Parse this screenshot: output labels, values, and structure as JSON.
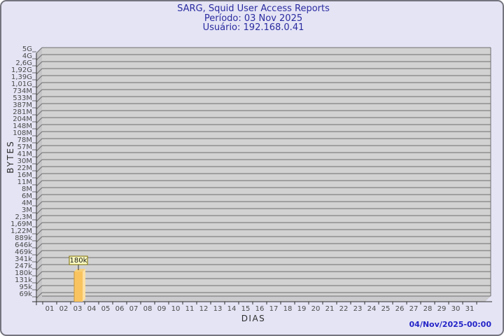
{
  "chart_data": {
    "type": "bar",
    "title": "SARG, Squid User Access Reports",
    "subtitle_period": "Período: 03 Nov 2025",
    "subtitle_user": "Usuário: 192.168.0.41",
    "xlabel": "DIAS",
    "ylabel": "BYTES",
    "grid": true,
    "x_categories": [
      "01",
      "02",
      "03",
      "04",
      "05",
      "06",
      "07",
      "08",
      "09",
      "10",
      "11",
      "12",
      "13",
      "14",
      "15",
      "16",
      "17",
      "18",
      "19",
      "20",
      "21",
      "22",
      "23",
      "24",
      "25",
      "26",
      "27",
      "28",
      "29",
      "30",
      "31"
    ],
    "y_tick_labels": [
      "5G",
      "4G",
      "2,6G",
      "1,92G",
      "1,39G",
      "1,01G",
      "734M",
      "533M",
      "387M",
      "281M",
      "204M",
      "148M",
      "108M",
      "78M",
      "57M",
      "41M",
      "30M",
      "22M",
      "16M",
      "11M",
      "8M",
      "6M",
      "4M",
      "3M",
      "2,3M",
      "1,69M",
      "1,22M",
      "889k",
      "646k",
      "469k",
      "341k",
      "247k",
      "180k",
      "131k",
      "95k",
      "69k"
    ],
    "y_scale": {
      "type": "log",
      "bottom_tick_value": 69000,
      "top_tick_value": 5000000000
    },
    "bars": [
      {
        "day": "03",
        "value_bytes": 180000,
        "value_label": "180k"
      }
    ]
  },
  "footer": {
    "generated_timestamp": "04/Nov/2025-00:00"
  },
  "colors": {
    "background": "#e4e4f5",
    "frame_border": "#74747e",
    "title_text": "#2b2ba0",
    "plot_face": "#d2d2d2",
    "plot_wall": "#c5c5c8",
    "plot_floor": "#cbcbce",
    "gridline": "#6e6e6e",
    "axis": "#303030",
    "tick_text": "#4a4a4a",
    "bar_front": "#f9c45f",
    "bar_side": "#ffe0a2",
    "bar_top": "#f8d07a",
    "bar_edge": "#c8963c",
    "bar_label_bg": "#ffffc4",
    "bar_label_border": "#7a6a00",
    "bar_label_text": "#111111",
    "footer_text": "#2525c8"
  }
}
